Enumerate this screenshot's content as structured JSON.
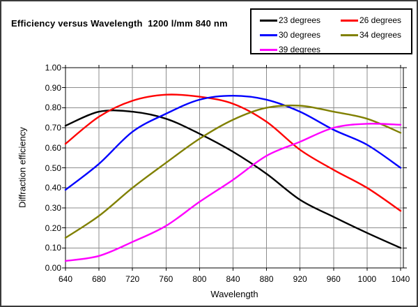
{
  "title": "Efficiency versus Wavelength  1200 l/mm 840 nm",
  "legend": {
    "items": [
      {
        "label": "23 degrees",
        "color": "#000000"
      },
      {
        "label": "26 degrees",
        "color": "#ff0000"
      },
      {
        "label": "30 degrees",
        "color": "#0000ff"
      },
      {
        "label": "34 degrees",
        "color": "#808000"
      },
      {
        "label": "39 degrees",
        "color": "#ff00ff"
      }
    ]
  },
  "chart_data": {
    "type": "line",
    "title": "Efficiency versus Wavelength  1200 l/mm 840 nm",
    "xlabel": "Wavelength",
    "ylabel": "Diffraction efficiency",
    "xlim": [
      640,
      1040
    ],
    "ylim": [
      0.0,
      1.0
    ],
    "grid": true,
    "legend_position": "top-right",
    "x": [
      640,
      680,
      720,
      760,
      800,
      840,
      880,
      920,
      960,
      1000,
      1040
    ],
    "x_tick_labels": [
      "640",
      "680",
      "720",
      "760",
      "800",
      "840",
      "880",
      "920",
      "960",
      "1000",
      "1040"
    ],
    "y_ticks": [
      0.0,
      0.1,
      0.2,
      0.3,
      0.4,
      0.5,
      0.6,
      0.7,
      0.8,
      0.9,
      1.0
    ],
    "y_tick_labels": [
      "0.00",
      "0.10",
      "0.20",
      "0.30",
      "0.40",
      "0.50",
      "0.60",
      "0.70",
      "0.80",
      "0.90",
      "1.00"
    ],
    "series": [
      {
        "name": "23 degrees",
        "color": "#000000",
        "values": [
          0.71,
          0.78,
          0.78,
          0.745,
          0.67,
          0.58,
          0.47,
          0.34,
          0.255,
          0.175,
          0.1
        ]
      },
      {
        "name": "26 degrees",
        "color": "#ff0000",
        "values": [
          0.62,
          0.755,
          0.835,
          0.865,
          0.855,
          0.82,
          0.73,
          0.59,
          0.49,
          0.4,
          0.285
        ]
      },
      {
        "name": "30 degrees",
        "color": "#0000ff",
        "values": [
          0.39,
          0.52,
          0.68,
          0.77,
          0.84,
          0.86,
          0.84,
          0.78,
          0.69,
          0.615,
          0.5
        ]
      },
      {
        "name": "34 degrees",
        "color": "#808000",
        "values": [
          0.15,
          0.26,
          0.4,
          0.525,
          0.645,
          0.74,
          0.8,
          0.81,
          0.78,
          0.745,
          0.675
        ]
      },
      {
        "name": "39 degrees",
        "color": "#ff00ff",
        "values": [
          0.035,
          0.06,
          0.13,
          0.21,
          0.33,
          0.44,
          0.56,
          0.63,
          0.7,
          0.72,
          0.715
        ]
      }
    ],
    "grid_color": "#8c8c8c",
    "axis_color": "#000000"
  }
}
